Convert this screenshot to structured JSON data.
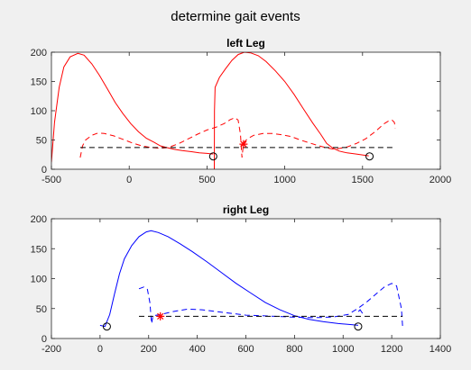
{
  "figure": {
    "title": "determine gait events"
  },
  "chart_data": [
    {
      "type": "line",
      "title": "left Leg",
      "xlabel": "",
      "ylabel": "",
      "xlim": [
        -500,
        2000
      ],
      "ylim": [
        0,
        200
      ],
      "xticks": [
        -500,
        0,
        500,
        1000,
        1500,
        2000
      ],
      "yticks": [
        0,
        50,
        100,
        150,
        200
      ],
      "grid": false,
      "legend": "none",
      "series": [
        {
          "color": "#ff0000",
          "dash": "solid",
          "segments": [
            [
              [
                -500,
                12
              ],
              [
                -480,
                80
              ],
              [
                -450,
                140
              ],
              [
                -420,
                175
              ],
              [
                -380,
                192
              ],
              [
                -330,
                198
              ],
              [
                -290,
                195
              ],
              [
                -240,
                180
              ],
              [
                -190,
                160
              ],
              [
                -140,
                137
              ],
              [
                -90,
                114
              ],
              [
                -40,
                95
              ],
              [
                10,
                78
              ],
              [
                60,
                64
              ],
              [
                110,
                53
              ],
              [
                160,
                46
              ],
              [
                200,
                40
              ],
              [
                240,
                37
              ],
              [
                290,
                34
              ],
              [
                340,
                32
              ],
              [
                400,
                30
              ],
              [
                450,
                28
              ],
              [
                500,
                27
              ],
              [
                540,
                26
              ]
            ],
            [
              [
                547,
                0
              ],
              [
                548,
                100
              ],
              [
                552,
                140
              ],
              [
                580,
                157
              ],
              [
                620,
                172
              ],
              [
                660,
                186
              ],
              [
                700,
                196
              ],
              [
                740,
                200
              ],
              [
                780,
                199
              ],
              [
                830,
                194
              ],
              [
                880,
                184
              ],
              [
                940,
                168
              ],
              [
                1000,
                150
              ],
              [
                1060,
                128
              ],
              [
                1120,
                103
              ],
              [
                1180,
                79
              ],
              [
                1230,
                60
              ],
              [
                1270,
                44
              ],
              [
                1310,
                36
              ],
              [
                1350,
                31
              ],
              [
                1400,
                28
              ],
              [
                1460,
                26
              ],
              [
                1510,
                24
              ],
              [
                1540,
                23
              ]
            ]
          ]
        },
        {
          "color": "#ff0000",
          "dash": "dashed",
          "segments": [
            [
              [
                -315,
                20
              ],
              [
                -300,
                40
              ],
              [
                -280,
                50
              ],
              [
                -240,
                58
              ],
              [
                -200,
                62
              ],
              [
                -160,
                61
              ],
              [
                -100,
                57
              ],
              [
                -40,
                51
              ],
              [
                20,
                45
              ],
              [
                80,
                40
              ],
              [
                140,
                37
              ],
              [
                200,
                36
              ],
              [
                250,
                37
              ],
              [
                320,
                44
              ],
              [
                380,
                52
              ],
              [
                440,
                60
              ],
              [
                500,
                67
              ],
              [
                560,
                72
              ],
              [
                610,
                78
              ],
              [
                650,
                85
              ],
              [
                680,
                88
              ],
              [
                700,
                84
              ],
              [
                715,
                60
              ],
              [
                722,
                30
              ],
              [
                725,
                20
              ],
              [
                735,
                45
              ],
              [
                760,
                52
              ],
              [
                800,
                58
              ],
              [
                860,
                61
              ],
              [
                920,
                61
              ],
              [
                980,
                59
              ],
              [
                1040,
                56
              ],
              [
                1100,
                50
              ],
              [
                1160,
                45
              ],
              [
                1220,
                40
              ],
              [
                1280,
                36
              ],
              [
                1320,
                34
              ],
              [
                1400,
                38
              ],
              [
                1460,
                44
              ],
              [
                1520,
                52
              ],
              [
                1580,
                64
              ],
              [
                1640,
                78
              ],
              [
                1670,
                83
              ],
              [
                1690,
                84
              ],
              [
                1705,
                80
              ],
              [
                1710,
                70
              ]
            ]
          ]
        },
        {
          "color": "#000000",
          "dash": "dashed",
          "segments": [
            [
              [
                -315,
                37
              ],
              [
                1710,
                37
              ]
            ]
          ]
        }
      ],
      "circle_markers": [
        [
          540,
          22
        ],
        [
          1545,
          22
        ]
      ],
      "star_markers": [
        [
          735,
          43
        ]
      ]
    },
    {
      "type": "line",
      "title": "right Leg",
      "xlabel": "",
      "ylabel": "",
      "xlim": [
        -200,
        1400
      ],
      "ylim": [
        0,
        200
      ],
      "xticks": [
        -200,
        0,
        200,
        400,
        600,
        800,
        1000,
        1200,
        1400
      ],
      "yticks": [
        0,
        50,
        100,
        150,
        200
      ],
      "grid": false,
      "legend": "none",
      "series": [
        {
          "color": "#0000ff",
          "dash": "solid",
          "segments": [
            [
              [
                0,
                22
              ],
              [
                20,
                20
              ],
              [
                40,
                40
              ],
              [
                60,
                75
              ],
              [
                80,
                108
              ],
              [
                100,
                133
              ],
              [
                130,
                155
              ],
              [
                160,
                170
              ],
              [
                190,
                178
              ],
              [
                210,
                180
              ],
              [
                240,
                177
              ],
              [
                280,
                170
              ],
              [
                330,
                158
              ],
              [
                380,
                145
              ],
              [
                440,
                128
              ],
              [
                500,
                110
              ],
              [
                560,
                92
              ],
              [
                620,
                76
              ],
              [
                680,
                60
              ],
              [
                740,
                48
              ],
              [
                800,
                38
              ],
              [
                860,
                32
              ],
              [
                920,
                28
              ],
              [
                980,
                25
              ],
              [
                1040,
                23
              ],
              [
                1062,
                22
              ]
            ],
            [
              [
                1063,
                45
              ],
              [
                1070,
                48
              ],
              [
                1080,
                42
              ]
            ]
          ]
        },
        {
          "color": "#0000ff",
          "dash": "dashed",
          "segments": [
            [
              [
                160,
                83
              ],
              [
                180,
                86
              ],
              [
                195,
                82
              ],
              [
                205,
                60
              ],
              [
                212,
                25
              ],
              [
                218,
                38
              ],
              [
                250,
                40
              ],
              [
                300,
                45
              ],
              [
                360,
                49
              ],
              [
                420,
                48
              ],
              [
                480,
                45
              ],
              [
                540,
                42
              ],
              [
                600,
                39
              ],
              [
                660,
                38
              ],
              [
                720,
                37
              ],
              [
                780,
                36
              ],
              [
                840,
                35
              ],
              [
                900,
                35
              ],
              [
                960,
                36
              ],
              [
                1020,
                40
              ],
              [
                1060,
                50
              ],
              [
                1100,
                62
              ],
              [
                1140,
                76
              ],
              [
                1170,
                86
              ],
              [
                1200,
                92
              ],
              [
                1220,
                88
              ],
              [
                1240,
                50
              ],
              [
                1245,
                20
              ]
            ]
          ]
        },
        {
          "color": "#000000",
          "dash": "dashed",
          "segments": [
            [
              [
                160,
                37
              ],
              [
                1245,
                37
              ]
            ]
          ]
        }
      ],
      "circle_markers": [
        [
          28,
          20
        ],
        [
          1062,
          20
        ]
      ],
      "star_markers": [
        [
          248,
          37
        ]
      ]
    }
  ]
}
